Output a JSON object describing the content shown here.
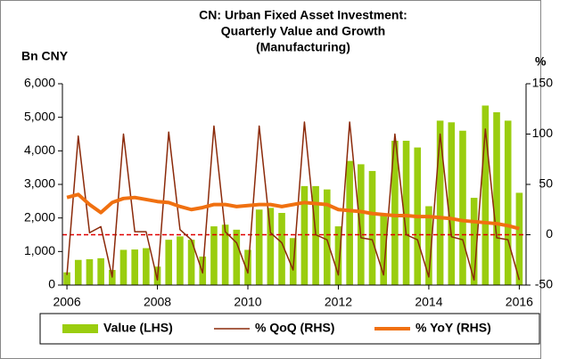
{
  "chart_data": {
    "type": "combo",
    "title": [
      "CN: Urban Fixed Asset Investment:",
      "Quarterly Value and Growth",
      "(Manufacturing)"
    ],
    "y_label": "Bn CNY",
    "y2_label": "%",
    "x": [
      2006,
      2006.25,
      2006.5,
      2006.75,
      2007,
      2007.25,
      2007.5,
      2007.75,
      2008,
      2008.25,
      2008.5,
      2008.75,
      2009,
      2009.25,
      2009.5,
      2009.75,
      2010,
      2010.25,
      2010.5,
      2010.75,
      2011,
      2011.25,
      2011.5,
      2011.75,
      2012,
      2012.25,
      2012.5,
      2012.75,
      2013,
      2013.25,
      2013.5,
      2013.75,
      2014,
      2014.25,
      2014.5,
      2014.75,
      2015,
      2015.25,
      2015.5,
      2015.75,
      2016
    ],
    "xlim": [
      2005.9,
      2016.15
    ],
    "xticks": [
      2006,
      2008,
      2010,
      2012,
      2014,
      2016
    ],
    "ylim": [
      0,
      6000
    ],
    "yticks": [
      0,
      {
        "value": 1000,
        "label": "1,000"
      },
      {
        "value": 2000,
        "label": "2,000"
      },
      {
        "value": 3000,
        "label": "3,000"
      },
      {
        "value": 4000,
        "label": "4,000"
      },
      {
        "value": 5000,
        "label": "5,000"
      },
      {
        "value": 6000,
        "label": "6,000"
      }
    ],
    "y2lim": [
      -50,
      150
    ],
    "y2ticks": [
      -50,
      0,
      50,
      100,
      150
    ],
    "reference_line": {
      "axis": "y2",
      "value": 0,
      "color": "#e00000"
    },
    "series": [
      {
        "name": "Value (LHS)",
        "type": "bar",
        "axis": "y",
        "color": "#9acd0f",
        "values": [
          380,
          750,
          770,
          800,
          450,
          1050,
          1060,
          1100,
          550,
          1350,
          1450,
          1350,
          850,
          1750,
          1800,
          1650,
          1050,
          2250,
          2300,
          2150,
          1400,
          2950,
          2950,
          2850,
          1750,
          3700,
          3600,
          3400,
          2100,
          4300,
          4300,
          4100,
          2350,
          4900,
          4850,
          4600,
          2600,
          5350,
          5150,
          4900,
          2750
        ]
      },
      {
        "name": "% QoQ (RHS)",
        "type": "line",
        "axis": "y2",
        "color": "#8b2a0a",
        "width": 1.5,
        "values": [
          -40,
          98,
          2,
          8,
          -42,
          100,
          3,
          3,
          -45,
          102,
          5,
          -5,
          -38,
          108,
          3,
          -8,
          -38,
          108,
          2,
          -8,
          -35,
          112,
          0,
          -5,
          -40,
          112,
          -3,
          -5,
          -40,
          100,
          0,
          -5,
          -42,
          100,
          -2,
          -5,
          -45,
          105,
          -3,
          -5,
          -45
        ]
      },
      {
        "name": "% YoY (RHS)",
        "type": "line",
        "axis": "y2",
        "color": "#f07010",
        "width": 4,
        "values": [
          37,
          40,
          30,
          22,
          32,
          36,
          37,
          35,
          33,
          32,
          28,
          25,
          27,
          30,
          30,
          28,
          29,
          30,
          30,
          28,
          30,
          32,
          31,
          30,
          25,
          24,
          23,
          21,
          20,
          19,
          19,
          18,
          18,
          17,
          16,
          14,
          13,
          12,
          11,
          9,
          6
        ]
      }
    ]
  }
}
